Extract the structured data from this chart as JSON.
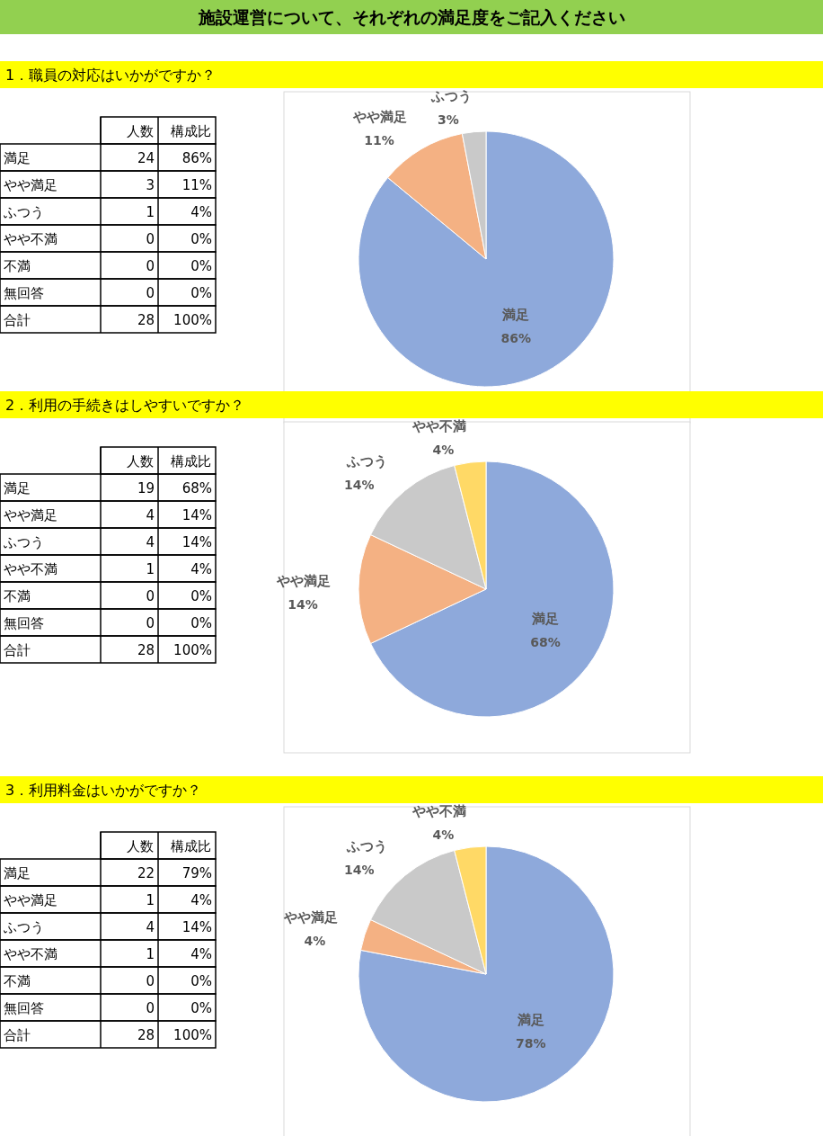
{
  "chart_data": [
    {
      "type": "pie",
      "title": "施設運営について、それぞれの満足度をご記入ください",
      "subtitle": "1．職員の対応はいかがですか？",
      "categories": [
        "満足",
        "やや満足",
        "ふつう",
        "やや不満",
        "不満",
        "無回答"
      ],
      "values": [
        86,
        11,
        3,
        0,
        0,
        0
      ],
      "colors": [
        "#8EA9DB",
        "#F4B183",
        "#C9C9C9",
        null,
        null,
        null
      ],
      "value_labels": [
        "86%",
        "11%",
        "3%",
        null,
        null,
        null
      ],
      "annotations": [
        "人数",
        "構成比",
        "24",
        "86%",
        "3",
        "11%",
        "1",
        "4%",
        "0",
        "0%",
        "0",
        "0%",
        "0",
        "0%",
        "合計",
        "28",
        "100%"
      ]
    },
    {
      "type": "pie",
      "title": "2．利用の手続きはしやすいですか？",
      "categories": [
        "満足",
        "やや満足",
        "ふつう",
        "やや不満",
        "不満",
        "無回答"
      ],
      "values": [
        68,
        14,
        14,
        4,
        0,
        0
      ],
      "colors": [
        "#8EA9DB",
        "#F4B183",
        "#C9C9C9",
        "#FFD966",
        null,
        null
      ],
      "value_labels": [
        "68%",
        "14%",
        "14%",
        "4%",
        null,
        null
      ],
      "annotations": [
        "人数",
        "構成比",
        "19",
        "68%",
        "4",
        "14%",
        "4",
        "14%",
        "1",
        "4%",
        "0",
        "0%",
        "0",
        "0%",
        "合計",
        "28",
        "100%"
      ]
    },
    {
      "type": "pie",
      "title": "3．利用料金はいかがですか？",
      "categories": [
        "満足",
        "やや満足",
        "ふつう",
        "やや不満",
        "不満",
        "無回答"
      ],
      "values": [
        78,
        4,
        14,
        4,
        0,
        0
      ],
      "colors": [
        "#8EA9DB",
        "#F4B183",
        "#C9C9C9",
        "#FFD966",
        null,
        null
      ],
      "value_labels": [
        "78%",
        "4%",
        "14%",
        "4%",
        null,
        null
      ],
      "annotations": [
        "人数",
        "構成比",
        "22",
        "79%",
        "1",
        "4%",
        "4",
        "14%",
        "1",
        "4%",
        "0",
        "0%",
        "0",
        "0%",
        "合計",
        "28",
        "100%"
      ]
    }
  ]
}
